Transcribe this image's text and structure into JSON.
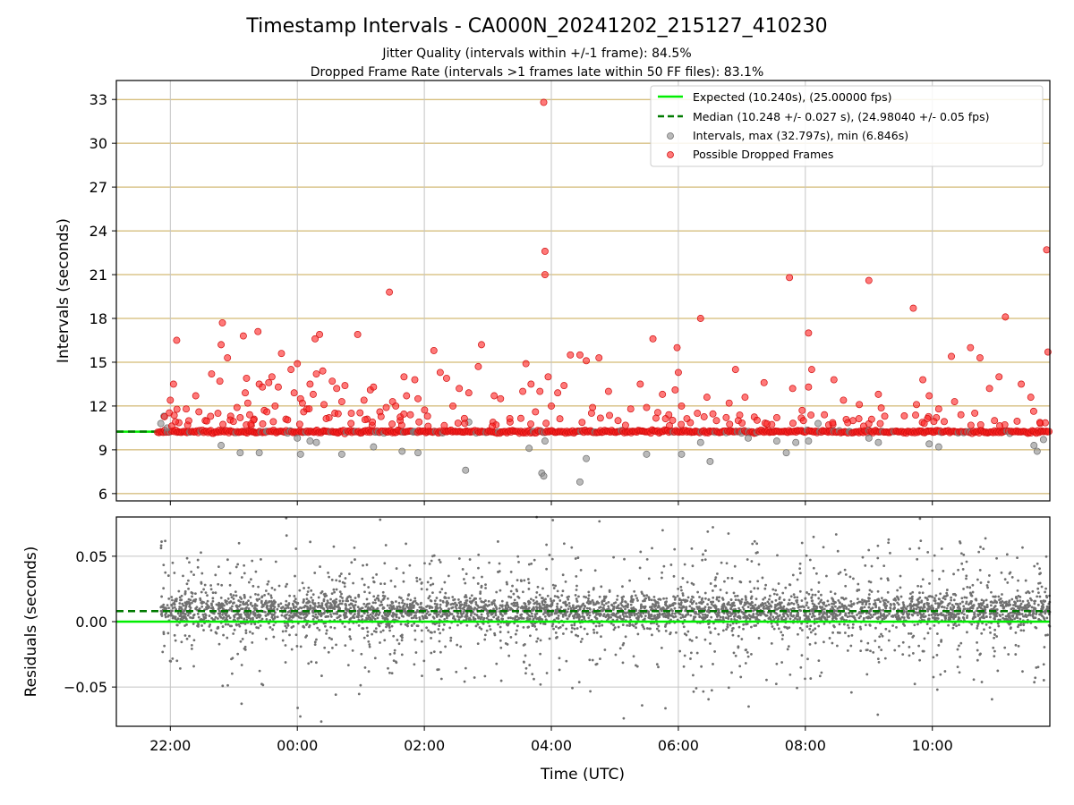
{
  "title": "Timestamp Intervals - CA000N_20241202_215127_410230",
  "subtitle_1": "Jitter Quality (intervals within +/-1 frame): 84.5%",
  "subtitle_2": "Dropped Frame Rate (intervals >1 frames late within 50 FF files): 83.1%",
  "colors": {
    "expected": "#00ee00",
    "median": "#007a00",
    "intervals": "#8c8c8c",
    "dropped": "#ff2020",
    "residuals": "#707070",
    "hgrid_top": "#c8a850",
    "grid": "#c4c4c4"
  },
  "chart_data": [
    {
      "type": "scatter",
      "name": "intervals-panel",
      "ylabel": "Intervals (seconds)",
      "xlabel": "",
      "x_unit": "hours since 00:00 UTC (2024-12-02 22:00 = -2)",
      "xlim": [
        -2.85,
        11.85
      ],
      "ylim": [
        5.5,
        34.3
      ],
      "yticks": [
        6,
        9,
        12,
        15,
        18,
        21,
        24,
        27,
        30,
        33
      ],
      "ytick_labels": [
        "6",
        "9",
        "12",
        "15",
        "18",
        "21",
        "24",
        "27",
        "30",
        "33"
      ],
      "grid": "on",
      "legend": {
        "placement": "top-right",
        "entries": [
          "Expected (10.240s), (25.00000 fps)",
          "Median (10.248 +/- 0.027 s), (24.98040 +/- 0.05 fps)",
          "Intervals, max (32.797s), min (6.846s)",
          "Possible Dropped Frames"
        ]
      },
      "lines": [
        {
          "name": "Expected (10.240s), (25.00000 fps)",
          "y": 10.24,
          "style": "solid"
        },
        {
          "name": "Median (10.248 +/- 0.027 s), (24.98040 +/- 0.05 fps)",
          "y": 10.248,
          "style": "dashed"
        }
      ],
      "baseline": {
        "x_start": -2.2,
        "x_end": 11.85,
        "y": 10.24
      },
      "dropped_outliers": [
        [
          -2.0,
          12.4
        ],
        [
          -1.95,
          13.5
        ],
        [
          -1.9,
          16.5
        ],
        [
          -1.75,
          11.8
        ],
        [
          -1.6,
          12.7
        ],
        [
          -1.55,
          11.6
        ],
        [
          -1.45,
          11.0
        ],
        [
          -1.35,
          14.2
        ],
        [
          -1.25,
          11.5
        ],
        [
          -1.22,
          13.7
        ],
        [
          -1.2,
          16.2
        ],
        [
          -1.18,
          17.7
        ],
        [
          -1.1,
          15.3
        ],
        [
          -1.05,
          11.3
        ],
        [
          -0.95,
          11.9
        ],
        [
          -0.9,
          11.2
        ],
        [
          -0.85,
          16.8
        ],
        [
          -0.82,
          12.9
        ],
        [
          -0.8,
          13.9
        ],
        [
          -0.78,
          12.2
        ],
        [
          -0.75,
          11.4
        ],
        [
          -0.68,
          11.1
        ],
        [
          -0.62,
          17.1
        ],
        [
          -0.6,
          13.5
        ],
        [
          -0.55,
          13.3
        ],
        [
          -0.52,
          11.7
        ],
        [
          -0.48,
          11.6
        ],
        [
          -0.45,
          13.6
        ],
        [
          -0.4,
          14.0
        ],
        [
          -0.35,
          12.0
        ],
        [
          -0.3,
          13.3
        ],
        [
          -0.25,
          15.6
        ],
        [
          -0.18,
          11.1
        ],
        [
          -0.1,
          14.5
        ],
        [
          -0.05,
          12.9
        ],
        [
          0.0,
          14.9
        ],
        [
          0.05,
          12.5
        ],
        [
          0.08,
          12.2
        ],
        [
          0.1,
          11.6
        ],
        [
          0.15,
          11.8
        ],
        [
          0.2,
          13.5
        ],
        [
          0.25,
          12.8
        ],
        [
          0.28,
          16.6
        ],
        [
          0.3,
          14.2
        ],
        [
          0.35,
          16.9
        ],
        [
          0.4,
          14.4
        ],
        [
          0.42,
          12.1
        ],
        [
          0.5,
          11.2
        ],
        [
          0.55,
          13.7
        ],
        [
          0.62,
          13.2
        ],
        [
          0.7,
          12.3
        ],
        [
          0.75,
          13.4
        ],
        [
          0.85,
          11.5
        ],
        [
          0.95,
          16.9
        ],
        [
          1.05,
          12.4
        ],
        [
          1.1,
          11.1
        ],
        [
          1.15,
          13.1
        ],
        [
          1.2,
          13.3
        ],
        [
          1.3,
          11.6
        ],
        [
          1.4,
          11.9
        ],
        [
          1.45,
          19.8
        ],
        [
          1.5,
          12.3
        ],
        [
          1.55,
          12.0
        ],
        [
          1.62,
          11.0
        ],
        [
          1.68,
          14.0
        ],
        [
          1.72,
          12.7
        ],
        [
          1.78,
          11.4
        ],
        [
          1.85,
          13.8
        ],
        [
          1.9,
          12.5
        ],
        [
          2.05,
          11.3
        ],
        [
          2.15,
          15.8
        ],
        [
          2.25,
          14.3
        ],
        [
          2.35,
          13.9
        ],
        [
          2.45,
          12.0
        ],
        [
          2.55,
          13.2
        ],
        [
          2.7,
          12.9
        ],
        [
          2.85,
          14.7
        ],
        [
          2.9,
          16.2
        ],
        [
          3.1,
          12.7
        ],
        [
          3.2,
          12.5
        ],
        [
          3.35,
          10.9
        ],
        [
          3.55,
          13.0
        ],
        [
          3.6,
          14.9
        ],
        [
          3.68,
          13.5
        ],
        [
          3.75,
          11.6
        ],
        [
          3.82,
          13.0
        ],
        [
          3.88,
          32.8
        ],
        [
          3.9,
          22.6
        ],
        [
          3.9,
          21.0
        ],
        [
          3.95,
          14.0
        ],
        [
          4.0,
          12.0
        ],
        [
          4.1,
          12.9
        ],
        [
          4.2,
          13.4
        ],
        [
          4.3,
          15.5
        ],
        [
          4.45,
          15.5
        ],
        [
          4.55,
          15.1
        ],
        [
          4.65,
          11.9
        ],
        [
          4.75,
          15.3
        ],
        [
          4.9,
          13.0
        ],
        [
          5.05,
          11.0
        ],
        [
          5.25,
          11.8
        ],
        [
          5.4,
          13.5
        ],
        [
          5.5,
          11.9
        ],
        [
          5.6,
          16.6
        ],
        [
          5.75,
          12.8
        ],
        [
          5.85,
          11.4
        ],
        [
          5.95,
          13.1
        ],
        [
          5.98,
          16.0
        ],
        [
          6.0,
          14.3
        ],
        [
          6.05,
          12.0
        ],
        [
          6.3,
          11.5
        ],
        [
          6.35,
          18.0
        ],
        [
          6.45,
          12.6
        ],
        [
          6.6,
          11.0
        ],
        [
          6.8,
          12.2
        ],
        [
          6.9,
          14.5
        ],
        [
          7.05,
          12.6
        ],
        [
          7.35,
          13.6
        ],
        [
          7.55,
          11.2
        ],
        [
          7.75,
          20.8
        ],
        [
          7.8,
          13.2
        ],
        [
          7.95,
          11.7
        ],
        [
          8.05,
          13.3
        ],
        [
          8.05,
          17.0
        ],
        [
          8.1,
          14.5
        ],
        [
          8.3,
          11.4
        ],
        [
          8.45,
          13.8
        ],
        [
          8.6,
          12.4
        ],
        [
          8.75,
          11.0
        ],
        [
          8.85,
          12.1
        ],
        [
          9.0,
          20.6
        ],
        [
          9.15,
          12.8
        ],
        [
          9.25,
          11.3
        ],
        [
          9.7,
          18.7
        ],
        [
          9.75,
          12.1
        ],
        [
          9.85,
          13.8
        ],
        [
          9.95,
          12.7
        ],
        [
          10.1,
          11.8
        ],
        [
          10.3,
          15.4
        ],
        [
          10.35,
          12.3
        ],
        [
          10.45,
          11.4
        ],
        [
          10.6,
          16.0
        ],
        [
          10.75,
          15.3
        ],
        [
          10.9,
          13.2
        ],
        [
          11.05,
          14.0
        ],
        [
          11.15,
          18.1
        ],
        [
          11.4,
          13.5
        ],
        [
          11.55,
          12.6
        ],
        [
          11.7,
          10.8
        ],
        [
          11.8,
          22.7
        ],
        [
          11.82,
          15.7
        ]
      ],
      "gray_outliers": [
        [
          -2.15,
          10.8
        ],
        [
          -2.1,
          11.3
        ],
        [
          -2.05,
          10.5
        ],
        [
          -1.2,
          9.3
        ],
        [
          -0.9,
          8.8
        ],
        [
          -0.6,
          8.8
        ],
        [
          0.0,
          9.8
        ],
        [
          0.05,
          8.7
        ],
        [
          0.2,
          9.6
        ],
        [
          0.3,
          9.5
        ],
        [
          0.7,
          8.7
        ],
        [
          1.2,
          9.2
        ],
        [
          1.65,
          8.9
        ],
        [
          1.9,
          8.8
        ],
        [
          2.65,
          7.6
        ],
        [
          2.7,
          10.9
        ],
        [
          3.65,
          9.1
        ],
        [
          3.85,
          7.4
        ],
        [
          3.88,
          7.2
        ],
        [
          3.9,
          9.6
        ],
        [
          4.45,
          6.8
        ],
        [
          4.55,
          8.4
        ],
        [
          5.5,
          8.7
        ],
        [
          6.05,
          8.7
        ],
        [
          6.35,
          9.5
        ],
        [
          6.5,
          8.2
        ],
        [
          7.1,
          9.8
        ],
        [
          7.55,
          9.6
        ],
        [
          7.7,
          8.8
        ],
        [
          7.85,
          9.5
        ],
        [
          8.05,
          9.6
        ],
        [
          8.2,
          10.8
        ],
        [
          9.0,
          9.8
        ],
        [
          9.15,
          9.5
        ],
        [
          9.95,
          9.4
        ],
        [
          10.1,
          9.2
        ],
        [
          11.6,
          9.3
        ],
        [
          11.65,
          8.9
        ],
        [
          11.75,
          9.7
        ]
      ]
    },
    {
      "type": "scatter",
      "name": "residuals-panel",
      "ylabel": "Residuals (seconds)",
      "xlabel": "Time (UTC)",
      "xlim": [
        -2.85,
        11.85
      ],
      "ylim": [
        -0.08,
        0.08
      ],
      "yticks": [
        -0.05,
        0.0,
        0.05
      ],
      "ytick_labels": [
        "−0.05",
        "0.00",
        "0.05"
      ],
      "xticks": [
        -2,
        0,
        2,
        4,
        6,
        8,
        10
      ],
      "xtick_labels": [
        "22:00",
        "00:00",
        "02:00",
        "04:00",
        "06:00",
        "08:00",
        "10:00"
      ],
      "grid": "on",
      "lines": [
        {
          "name": "Expected",
          "y": 0.0,
          "style": "solid"
        },
        {
          "name": "Median",
          "y": 0.008,
          "style": "dashed"
        }
      ],
      "x_start": -2.15,
      "x_end": 11.85,
      "residual_count": 4600,
      "residual_spread": {
        "core_mean": 0.008,
        "core_sd": 0.006,
        "outlier_sd": 0.028,
        "outlier_fraction": 0.28
      }
    }
  ]
}
